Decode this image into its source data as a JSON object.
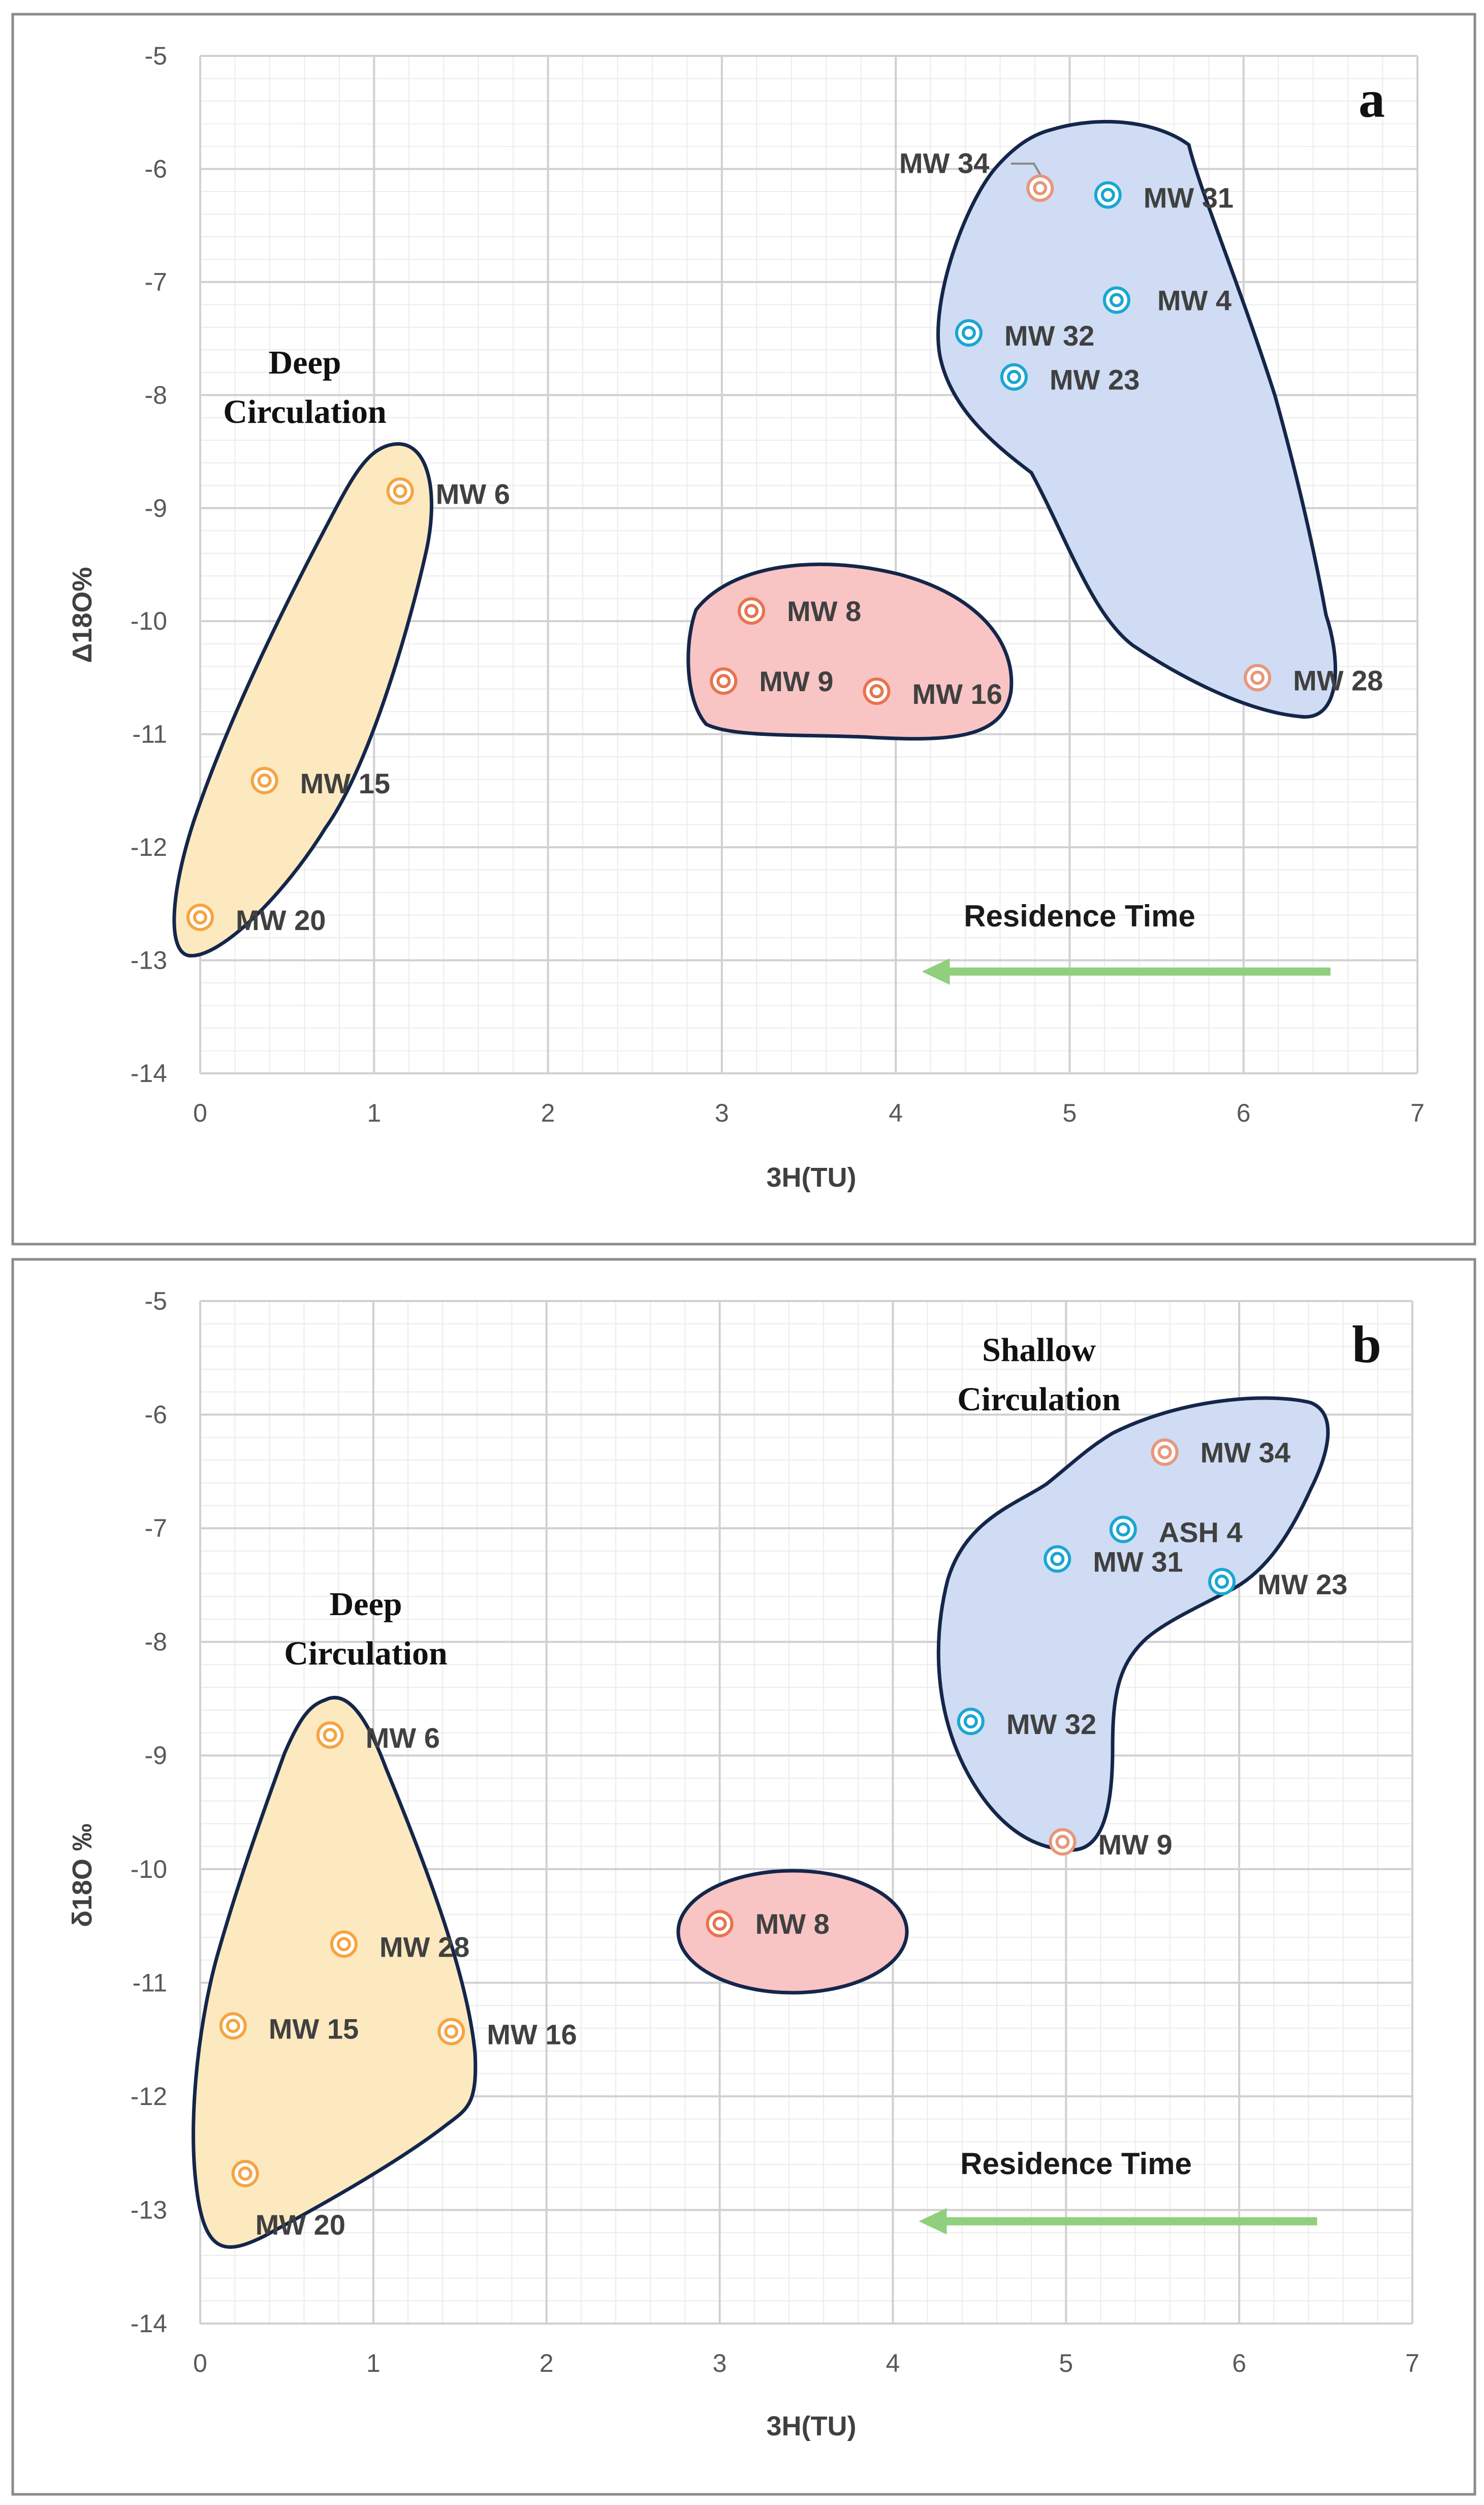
{
  "chart_data": [
    {
      "type": "scatter",
      "panel": "a",
      "xlabel": "3H(TU)",
      "ylabel": "Δ18O%",
      "xlim": [
        0,
        7
      ],
      "ylim": [
        -14,
        -5
      ],
      "xticks": [
        0,
        1,
        2,
        3,
        4,
        5,
        6,
        7
      ],
      "yticks": [
        -5,
        -6,
        -7,
        -8,
        -9,
        -10,
        -11,
        -12,
        -13,
        -14
      ],
      "grid": true,
      "points": [
        {
          "label": "MW 34",
          "x": 4.83,
          "y": -6.17,
          "color": "#e8967a"
        },
        {
          "label": "MW 31",
          "x": 5.22,
          "y": -6.23,
          "color": "#1aa6d2"
        },
        {
          "label": "MW 4",
          "x": 5.27,
          "y": -7.16,
          "color": "#1aa6d2"
        },
        {
          "label": "MW 32",
          "x": 4.42,
          "y": -7.45,
          "color": "#1aa6d2"
        },
        {
          "label": "MW 23",
          "x": 4.68,
          "y": -7.84,
          "color": "#1aa6d2"
        },
        {
          "label": "MW 6",
          "x": 1.15,
          "y": -8.85,
          "color": "#f5a441"
        },
        {
          "label": "MW 8",
          "x": 3.17,
          "y": -9.91,
          "color": "#e8734d"
        },
        {
          "label": "MW 9",
          "x": 3.01,
          "y": -10.53,
          "color": "#e8734d"
        },
        {
          "label": "MW 16",
          "x": 3.89,
          "y": -10.62,
          "color": "#e8734d"
        },
        {
          "label": "MW 28",
          "x": 6.08,
          "y": -10.5,
          "color": "#e8967a"
        },
        {
          "label": "MW 15",
          "x": 0.37,
          "y": -11.41,
          "color": "#f5a441"
        },
        {
          "label": "MW 20",
          "x": 0.0,
          "y": -12.62,
          "color": "#f5a441"
        }
      ],
      "groups": [
        {
          "name": "deep",
          "fill": "#fde9bf"
        },
        {
          "name": "mid",
          "fill": "#f8c4c4"
        },
        {
          "name": "shallow",
          "fill": "#cfdcf3"
        }
      ],
      "annotations": {
        "deep_line1": "Deep",
        "deep_line2": "Circulation",
        "residence_time": "Residence Time"
      },
      "arrow": {
        "from_x": 6.5,
        "to_x": 4.15,
        "y": -13.1,
        "color": "#8fcf7d"
      }
    },
    {
      "type": "scatter",
      "panel": "b",
      "xlabel": "3H(TU)",
      "ylabel": "δ18O ‰",
      "xlim": [
        0,
        7
      ],
      "ylim": [
        -14,
        -5
      ],
      "xticks": [
        0,
        1,
        2,
        3,
        4,
        5,
        6,
        7
      ],
      "yticks": [
        -5,
        -6,
        -7,
        -8,
        -9,
        -10,
        -11,
        -12,
        -13,
        -14
      ],
      "grid": true,
      "points": [
        {
          "label": "MW 34",
          "x": 5.57,
          "y": -6.33,
          "color": "#e8967a"
        },
        {
          "label": "ASH 4",
          "x": 5.33,
          "y": -7.01,
          "color": "#1aa6d2"
        },
        {
          "label": "MW 31",
          "x": 4.95,
          "y": -7.27,
          "color": "#1aa6d2"
        },
        {
          "label": "MW 23",
          "x": 5.9,
          "y": -7.47,
          "color": "#1aa6d2"
        },
        {
          "label": "MW 32",
          "x": 4.45,
          "y": -8.7,
          "color": "#1aa6d2"
        },
        {
          "label": "MW 9",
          "x": 4.98,
          "y": -9.76,
          "color": "#e8967a"
        },
        {
          "label": "MW 6",
          "x": 0.75,
          "y": -8.82,
          "color": "#f5a441"
        },
        {
          "label": "MW 8",
          "x": 3.0,
          "y": -10.48,
          "color": "#e8734d"
        },
        {
          "label": "MW 28",
          "x": 0.83,
          "y": -10.66,
          "color": "#f5a441"
        },
        {
          "label": "MW 15",
          "x": 0.19,
          "y": -11.38,
          "color": "#f5a441"
        },
        {
          "label": "MW 16",
          "x": 1.45,
          "y": -11.43,
          "color": "#f5a441"
        },
        {
          "label": "MW 20",
          "x": 0.26,
          "y": -12.68,
          "color": "#f5a441"
        }
      ],
      "groups": [
        {
          "name": "deep",
          "fill": "#fde9bf"
        },
        {
          "name": "mid",
          "fill": "#f8c4c4"
        },
        {
          "name": "shallow",
          "fill": "#cfdcf3"
        }
      ],
      "annotations": {
        "deep_line1": "Deep",
        "deep_line2": "Circulation",
        "shallow_line1": "Shallow",
        "shallow_line2": "Circulation",
        "residence_time": "Residence Time"
      },
      "arrow": {
        "from_x": 6.45,
        "to_x": 4.15,
        "y": -13.1,
        "color": "#8fcf7d"
      }
    }
  ],
  "colors": {
    "grid_major": "#d0d0d0",
    "grid_minor": "#ececec",
    "outline": "#14264a",
    "frame": "#8a8a8a"
  }
}
